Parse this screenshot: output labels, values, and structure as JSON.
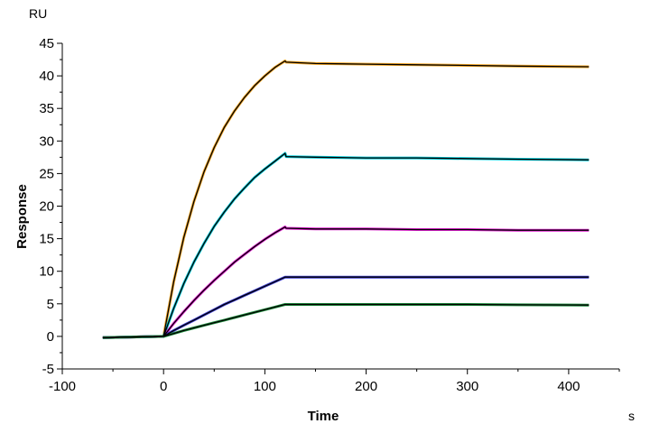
{
  "chart_data": {
    "type": "line",
    "xlabel": "Time",
    "ylabel": "Response",
    "x_unit": "s",
    "y_unit": "RU",
    "xlim": [
      -100,
      450
    ],
    "ylim": [
      -5,
      45
    ],
    "x_ticks": [
      -100,
      0,
      100,
      200,
      300,
      400
    ],
    "y_ticks": [
      -5,
      0,
      5,
      10,
      15,
      20,
      25,
      30,
      35,
      40,
      45
    ],
    "grid": false,
    "legend": "none",
    "fit_color": "#000000",
    "series": [
      {
        "color": "#f5a623",
        "x": [
          -60,
          0,
          10,
          20,
          30,
          40,
          50,
          60,
          70,
          80,
          90,
          100,
          110,
          120,
          121,
          150,
          200,
          250,
          300,
          350,
          420
        ],
        "y": [
          -0.2,
          0.0,
          8.4,
          15.2,
          20.7,
          25.3,
          29.0,
          32.1,
          34.6,
          36.7,
          38.5,
          40.0,
          41.3,
          42.3,
          42.1,
          41.9,
          41.8,
          41.7,
          41.6,
          41.5,
          41.4
        ]
      },
      {
        "color": "#00c8d6",
        "x": [
          -60,
          0,
          10,
          20,
          30,
          40,
          50,
          60,
          70,
          80,
          90,
          100,
          110,
          120,
          121,
          150,
          200,
          250,
          300,
          350,
          420
        ],
        "y": [
          -0.2,
          0.0,
          4.3,
          8.1,
          11.4,
          14.3,
          16.9,
          19.1,
          21.1,
          22.8,
          24.4,
          25.7,
          26.9,
          28.1,
          27.6,
          27.5,
          27.4,
          27.4,
          27.3,
          27.2,
          27.1
        ]
      },
      {
        "color": "#e01ed0",
        "x": [
          -60,
          0,
          10,
          20,
          30,
          40,
          50,
          60,
          70,
          80,
          90,
          100,
          110,
          120,
          121,
          150,
          200,
          250,
          300,
          350,
          420
        ],
        "y": [
          -0.2,
          0.0,
          2.0,
          3.8,
          5.5,
          7.1,
          8.6,
          10.0,
          11.4,
          12.6,
          13.8,
          14.9,
          15.9,
          16.8,
          16.6,
          16.5,
          16.5,
          16.4,
          16.4,
          16.3,
          16.3
        ]
      },
      {
        "color": "#3a3acf",
        "x": [
          -60,
          0,
          10,
          20,
          30,
          40,
          50,
          60,
          70,
          80,
          90,
          100,
          110,
          120,
          121,
          150,
          200,
          250,
          300,
          350,
          420
        ],
        "y": [
          -0.2,
          0.0,
          0.9,
          1.7,
          2.5,
          3.3,
          4.1,
          4.9,
          5.6,
          6.3,
          7.0,
          7.7,
          8.4,
          9.1,
          9.1,
          9.1,
          9.1,
          9.1,
          9.1,
          9.1,
          9.1
        ]
      },
      {
        "color": "#1a8a3a",
        "x": [
          -60,
          0,
          10,
          20,
          30,
          40,
          50,
          60,
          70,
          80,
          90,
          100,
          110,
          120,
          121,
          150,
          200,
          250,
          300,
          350,
          420
        ],
        "y": [
          -0.2,
          0.0,
          0.45,
          0.9,
          1.3,
          1.7,
          2.1,
          2.5,
          2.9,
          3.3,
          3.7,
          4.1,
          4.5,
          4.9,
          4.9,
          4.9,
          4.9,
          4.9,
          4.9,
          4.85,
          4.8
        ]
      }
    ]
  }
}
